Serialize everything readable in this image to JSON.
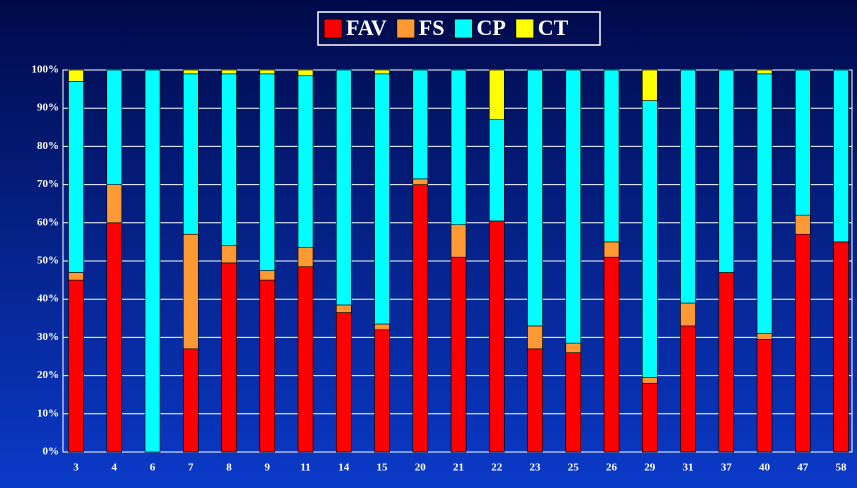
{
  "chart_data": {
    "type": "stacked_bar_percent",
    "categories": [
      "3",
      "4",
      "6",
      "7",
      "8",
      "9",
      "11",
      "14",
      "15",
      "20",
      "21",
      "22",
      "23",
      "25",
      "26",
      "29",
      "31",
      "37",
      "40",
      "47",
      "58"
    ],
    "series": [
      {
        "name": "FAV",
        "color": "#ff0000",
        "values": [
          45,
          60,
          0,
          27,
          49.5,
          45,
          48.5,
          36.5,
          32,
          70,
          51,
          60.5,
          27,
          26,
          51,
          18,
          33,
          47,
          29.5,
          57,
          55
        ]
      },
      {
        "name": "FS",
        "color": "#ff9933",
        "values": [
          2,
          10,
          0,
          30,
          4.5,
          2.5,
          5,
          2,
          1.5,
          1.5,
          8.5,
          0,
          6,
          2.5,
          4,
          1.5,
          6,
          0,
          1.5,
          5,
          0
        ]
      },
      {
        "name": "CP",
        "color": "#00ffff",
        "values": [
          50,
          30,
          100,
          42,
          45,
          51.5,
          45,
          61.5,
          65.5,
          28.5,
          40.5,
          26.5,
          67,
          71.5,
          45,
          72.5,
          61,
          53,
          68,
          38,
          45
        ]
      },
      {
        "name": "CT",
        "color": "#ffff00",
        "values": [
          3,
          0,
          0,
          1,
          1,
          1,
          1.5,
          0,
          1,
          0,
          0,
          13,
          0,
          0,
          0,
          8,
          0,
          0,
          1,
          0,
          0
        ]
      }
    ],
    "ylim": [
      0,
      100
    ],
    "yticks": [
      {
        "value": 0,
        "label": "0%"
      },
      {
        "value": 10,
        "label": "10%"
      },
      {
        "value": 20,
        "label": "20%"
      },
      {
        "value": 30,
        "label": "30%"
      },
      {
        "value": 40,
        "label": "40%"
      },
      {
        "value": 50,
        "label": "50%"
      },
      {
        "value": 60,
        "label": "60%"
      },
      {
        "value": 70,
        "label": "70%"
      },
      {
        "value": 80,
        "label": "80%"
      },
      {
        "value": 90,
        "label": "90%"
      },
      {
        "value": 100,
        "label": "100%"
      }
    ],
    "grid": true,
    "legend": "top"
  }
}
